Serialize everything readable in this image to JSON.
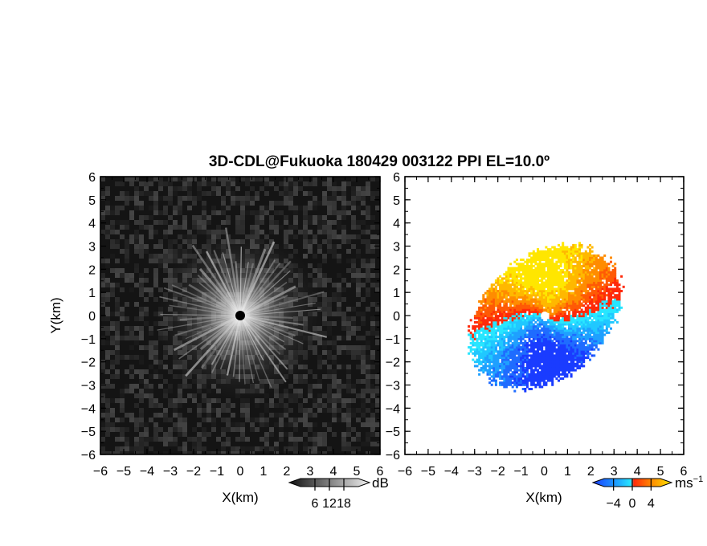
{
  "title": "3D-CDL@Fukuoka 180429 003122 PPI EL=10.0º",
  "chart_data": [
    {
      "type": "heatmap",
      "name": "reflectivity-panel",
      "xlabel": "X(km)",
      "ylabel": "Y(km)",
      "xlim": [
        -6,
        6
      ],
      "ylim": [
        -6,
        6
      ],
      "xticks": [
        "−6",
        "−5",
        "−4",
        "−3",
        "−2",
        "−1",
        "0",
        "1",
        "2",
        "3",
        "4",
        "5",
        "6"
      ],
      "yticks": [
        "6",
        "5",
        "4",
        "3",
        "2",
        "1",
        "0",
        "−1",
        "−2",
        "−3",
        "−4",
        "−5",
        "−6"
      ],
      "colormap": "grayscale",
      "colorbar": {
        "unit": "dB",
        "ticks": [
          6,
          12,
          18
        ],
        "ticklabels": [
          "6",
          "12",
          "18"
        ],
        "range": [
          0,
          24
        ]
      },
      "field": {
        "description": "radial streaks brightest near origin, fading to dark noise",
        "center": [
          0,
          0
        ],
        "bright_radius_km": 3.5
      }
    },
    {
      "type": "heatmap",
      "name": "doppler-velocity-panel",
      "xlabel": "X(km)",
      "ylabel": "",
      "xlim": [
        -6,
        6
      ],
      "ylim": [
        -6,
        6
      ],
      "xticks": [
        "−6",
        "−5",
        "−4",
        "−3",
        "−2",
        "−1",
        "0",
        "1",
        "2",
        "3",
        "4",
        "5",
        "6"
      ],
      "yticks": [
        "6",
        "5",
        "4",
        "3",
        "2",
        "1",
        "0",
        "−1",
        "−2",
        "−3",
        "−4",
        "−5",
        "−6"
      ],
      "colormap": "blue-cyan-red-yellow diverging",
      "colorbar": {
        "unit": "ms",
        "unit_exponent": "−1",
        "ticks": [
          -4,
          0,
          4
        ],
        "ticklabels": [
          "−4",
          "0",
          "4"
        ],
        "range": [
          -6,
          6
        ]
      },
      "field": {
        "description": "negative (approaching) velocities west/south-west, positive (receding) north-east with S-shaped zero line",
        "extent_km": [
          -4,
          4
        ]
      }
    }
  ],
  "colors": {
    "neg_strong": "#1a3cff",
    "neg_mid": "#1fa0ff",
    "neg_weak": "#28e6ff",
    "pos_weak": "#ff2a0a",
    "pos_mid": "#ff8c00",
    "pos_strong": "#ffe600",
    "axis": "#000000"
  }
}
